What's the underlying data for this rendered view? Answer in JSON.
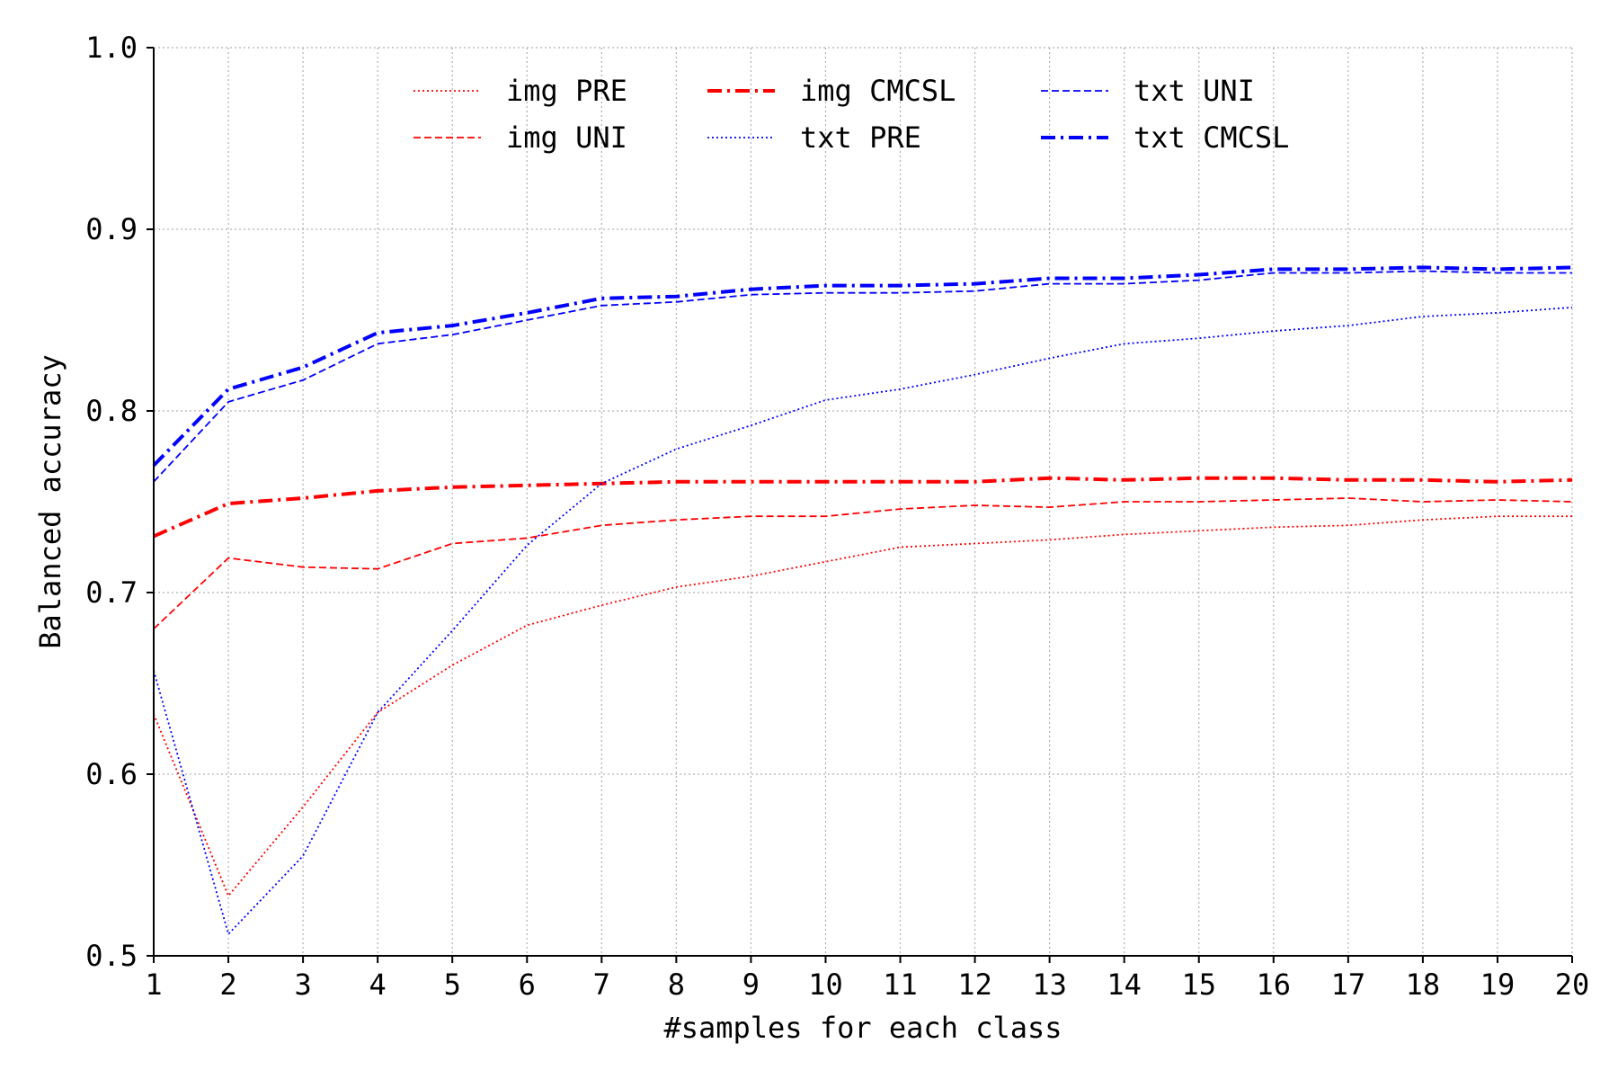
{
  "chart_data": {
    "type": "line",
    "title": "",
    "xlabel": "#samples for each class",
    "ylabel": "Balanced accuracy",
    "xlim": [
      1,
      20
    ],
    "ylim": [
      0.5,
      1.0
    ],
    "x": [
      1,
      2,
      3,
      4,
      5,
      6,
      7,
      8,
      9,
      10,
      11,
      12,
      13,
      14,
      15,
      16,
      17,
      18,
      19,
      20
    ],
    "x_ticks": [
      "1",
      "2",
      "3",
      "4",
      "5",
      "6",
      "7",
      "8",
      "9",
      "10",
      "11",
      "12",
      "13",
      "14",
      "15",
      "16",
      "17",
      "18",
      "19",
      "20"
    ],
    "y_ticks": [
      0.5,
      0.6,
      0.7,
      0.8,
      0.9,
      1.0
    ],
    "y_tick_labels": [
      "0.5",
      "0.6",
      "0.7",
      "0.8",
      "0.9",
      "1.0"
    ],
    "grid": true,
    "legend_position": "top-center",
    "series": [
      {
        "name": "img PRE",
        "color": "#ff0000",
        "style": "dotted",
        "values": [
          0.633,
          0.533,
          0.582,
          0.634,
          0.66,
          0.682,
          0.693,
          0.703,
          0.709,
          0.717,
          0.725,
          0.727,
          0.729,
          0.732,
          0.734,
          0.736,
          0.737,
          0.74,
          0.742,
          0.742
        ]
      },
      {
        "name": "img UNI",
        "color": "#ff0000",
        "style": "dashed",
        "values": [
          0.68,
          0.719,
          0.714,
          0.713,
          0.727,
          0.73,
          0.737,
          0.74,
          0.742,
          0.742,
          0.746,
          0.748,
          0.747,
          0.75,
          0.75,
          0.751,
          0.752,
          0.75,
          0.751,
          0.75
        ]
      },
      {
        "name": "img CMCSL",
        "color": "#ff0000",
        "style": "dashdot",
        "values": [
          0.731,
          0.749,
          0.752,
          0.756,
          0.758,
          0.759,
          0.76,
          0.761,
          0.761,
          0.761,
          0.761,
          0.761,
          0.763,
          0.762,
          0.763,
          0.763,
          0.762,
          0.762,
          0.761,
          0.762
        ]
      },
      {
        "name": "txt PRE",
        "color": "#0000ff",
        "style": "dotted",
        "values": [
          0.657,
          0.512,
          0.555,
          0.634,
          0.679,
          0.726,
          0.76,
          0.779,
          0.792,
          0.806,
          0.812,
          0.82,
          0.829,
          0.837,
          0.84,
          0.844,
          0.847,
          0.852,
          0.854,
          0.857
        ]
      },
      {
        "name": "txt UNI",
        "color": "#0000ff",
        "style": "dashed",
        "values": [
          0.761,
          0.805,
          0.817,
          0.837,
          0.842,
          0.85,
          0.858,
          0.86,
          0.864,
          0.865,
          0.865,
          0.866,
          0.87,
          0.87,
          0.872,
          0.876,
          0.876,
          0.877,
          0.876,
          0.876
        ]
      },
      {
        "name": "txt CMCSL",
        "color": "#0000ff",
        "style": "dashdot",
        "values": [
          0.77,
          0.812,
          0.824,
          0.843,
          0.847,
          0.854,
          0.862,
          0.863,
          0.867,
          0.869,
          0.869,
          0.87,
          0.873,
          0.873,
          0.875,
          0.878,
          0.878,
          0.879,
          0.878,
          0.879
        ]
      }
    ]
  }
}
